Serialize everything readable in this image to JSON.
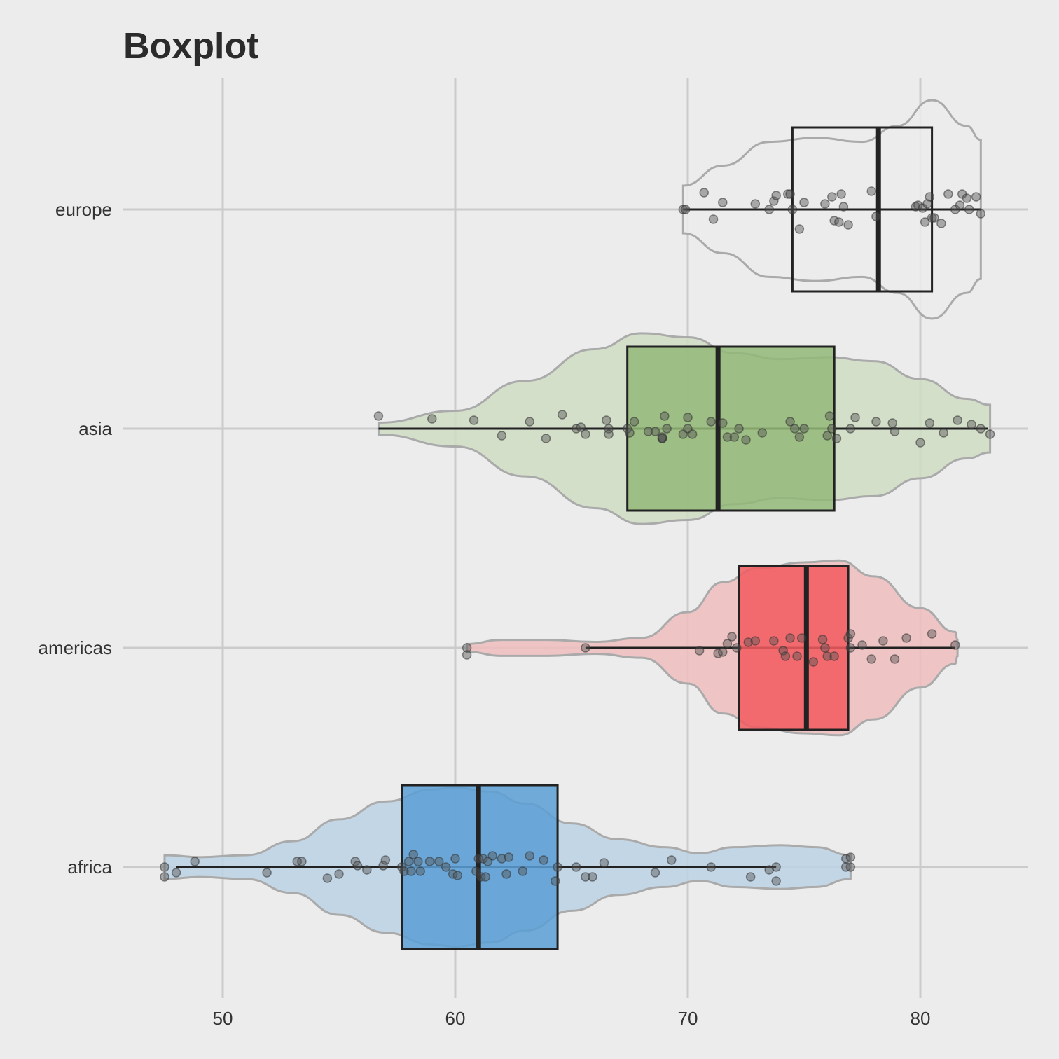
{
  "chart_data": {
    "type": "boxplot",
    "title": "Boxplot",
    "xlabel": "",
    "ylabel": "",
    "xlim": [
      45,
      85
    ],
    "x_ticks": [
      50,
      60,
      70,
      80
    ],
    "categories": [
      "europe",
      "asia",
      "americas",
      "africa"
    ],
    "grid": true,
    "series": [
      {
        "name": "europe",
        "box_color": "#ececec",
        "violin_color": "#ececec",
        "box": {
          "whisker_low": 69.8,
          "q1": 74.5,
          "median": 78.2,
          "q3": 80.5,
          "whisker_high": 82.6
        },
        "violin_range": [
          69.8,
          82.6
        ],
        "violin_profile": [
          [
            69.8,
            0.12
          ],
          [
            71.5,
            0.22
          ],
          [
            73.5,
            0.34
          ],
          [
            75.5,
            0.36
          ],
          [
            77.5,
            0.34
          ],
          [
            79.0,
            0.42
          ],
          [
            80.5,
            0.55
          ],
          [
            82.0,
            0.42
          ],
          [
            82.6,
            0.35
          ]
        ],
        "points": [
          69.8,
          69.9,
          70.7,
          71.1,
          71.5,
          72.9,
          73.5,
          73.7,
          73.8,
          74.3,
          74.4,
          74.5,
          74.8,
          75.0,
          75.9,
          76.2,
          76.3,
          76.5,
          76.6,
          76.7,
          76.9,
          77.9,
          78.1,
          79.8,
          79.9,
          80.1,
          80.2,
          80.3,
          80.4,
          80.5,
          80.6,
          80.9,
          81.2,
          81.5,
          81.7,
          81.8,
          82.0,
          82.1,
          82.4,
          82.6
        ],
        "points_jitter": [
          0.0,
          0.0,
          0.12,
          -0.07,
          0.05,
          0.04,
          0.0,
          0.06,
          0.1,
          0.11,
          0.11,
          0.0,
          -0.14,
          0.05,
          0.04,
          0.09,
          -0.08,
          -0.09,
          0.11,
          0.02,
          -0.11,
          0.13,
          -0.05,
          0.02,
          0.03,
          0.01,
          -0.09,
          0.04,
          0.09,
          -0.06,
          -0.06,
          -0.1,
          0.11,
          0.0,
          0.03,
          0.11,
          0.08,
          0.0,
          0.09,
          -0.03
        ]
      },
      {
        "name": "asia",
        "box_color": "#93b878",
        "violin_color": "#cfddc3",
        "box": {
          "whisker_low": 56.7,
          "q1": 67.4,
          "median": 71.3,
          "q3": 76.3,
          "whisker_high": 82.9
        },
        "violin_range": [
          56.7,
          83.0
        ],
        "violin_profile": [
          [
            56.7,
            0.03
          ],
          [
            60.0,
            0.09
          ],
          [
            63.0,
            0.24
          ],
          [
            66.0,
            0.4
          ],
          [
            68.0,
            0.48
          ],
          [
            70.0,
            0.46
          ],
          [
            72.0,
            0.38
          ],
          [
            74.0,
            0.35
          ],
          [
            76.0,
            0.36
          ],
          [
            78.0,
            0.34
          ],
          [
            80.0,
            0.25
          ],
          [
            82.0,
            0.15
          ],
          [
            83.0,
            0.12
          ]
        ],
        "points": [
          56.7,
          59.0,
          60.8,
          62.0,
          63.2,
          63.9,
          64.6,
          65.2,
          65.4,
          65.6,
          66.5,
          66.6,
          66.6,
          67.4,
          67.5,
          67.7,
          68.3,
          68.6,
          68.9,
          68.9,
          68.9,
          69.0,
          69.1,
          69.8,
          70.0,
          70.0,
          70.2,
          71.0,
          71.5,
          71.7,
          72.0,
          72.2,
          72.5,
          73.2,
          74.4,
          74.6,
          74.8,
          75.0,
          76.0,
          76.1,
          76.2,
          76.4,
          77.0,
          77.2,
          78.1,
          78.8,
          78.9,
          80.0,
          80.4,
          81.0,
          81.6,
          82.2,
          82.6,
          83.0
        ],
        "points_jitter": [
          0.09,
          0.07,
          0.06,
          -0.05,
          0.05,
          -0.07,
          0.1,
          0.0,
          0.01,
          -0.04,
          0.06,
          0.0,
          -0.04,
          0.0,
          -0.03,
          0.05,
          -0.02,
          -0.02,
          -0.07,
          -0.07,
          -0.06,
          0.09,
          0.0,
          -0.04,
          0.0,
          0.08,
          -0.04,
          0.05,
          0.04,
          -0.06,
          -0.06,
          0.0,
          -0.08,
          -0.03,
          0.05,
          0.0,
          -0.06,
          0.0,
          -0.05,
          0.09,
          0.0,
          -0.07,
          0.0,
          0.08,
          0.05,
          0.04,
          -0.02,
          -0.1,
          0.04,
          -0.03,
          0.06,
          0.03,
          0.0,
          -0.04
        ],
        "points_low": [
          56.7
        ]
      },
      {
        "name": "americas",
        "box_color": "#f25a5f",
        "violin_color": "#efbdbd",
        "box": {
          "whisker_low": 65.6,
          "q1": 72.2,
          "median": 75.1,
          "q3": 76.9,
          "whisker_high": 81.5
        },
        "violin_range": [
          60.5,
          81.6
        ],
        "violin_profile": [
          [
            60.5,
            0.02
          ],
          [
            62.0,
            0.04
          ],
          [
            64.0,
            0.04
          ],
          [
            66.0,
            0.03
          ],
          [
            68.0,
            0.05
          ],
          [
            70.0,
            0.18
          ],
          [
            71.5,
            0.33
          ],
          [
            73.0,
            0.4
          ],
          [
            75.0,
            0.43
          ],
          [
            76.5,
            0.44
          ],
          [
            78.0,
            0.36
          ],
          [
            80.0,
            0.2
          ],
          [
            81.5,
            0.08
          ],
          [
            81.6,
            0.04
          ]
        ],
        "points": [
          60.5,
          60.5,
          65.6,
          70.5,
          71.3,
          71.5,
          71.7,
          71.9,
          72.1,
          72.6,
          72.9,
          73.7,
          74.1,
          74.2,
          74.4,
          74.7,
          74.9,
          75.4,
          75.8,
          75.9,
          76.0,
          76.3,
          76.9,
          77.0,
          77.0,
          77.5,
          77.9,
          78.4,
          78.9,
          79.4,
          80.5,
          81.5
        ],
        "points_jitter": [
          0.0,
          -0.05,
          0.0,
          -0.02,
          -0.04,
          -0.03,
          0.03,
          0.08,
          0.0,
          0.04,
          0.05,
          0.05,
          -0.02,
          -0.06,
          0.07,
          -0.06,
          0.07,
          -0.1,
          0.06,
          0.0,
          -0.06,
          -0.06,
          0.07,
          0.0,
          0.1,
          0.02,
          -0.08,
          0.05,
          -0.08,
          0.07,
          0.1,
          0.02
        ]
      },
      {
        "name": "africa",
        "box_color": "#5b9fd5",
        "violin_color": "#bbd2e5",
        "box": {
          "whisker_low": 48.0,
          "q1": 57.7,
          "median": 61.0,
          "q3": 64.4,
          "whisker_high": 73.8
        },
        "violin_range": [
          47.5,
          77.0
        ],
        "violin_profile": [
          [
            47.5,
            0.06
          ],
          [
            49.0,
            0.05
          ],
          [
            51.0,
            0.06
          ],
          [
            53.0,
            0.13
          ],
          [
            55.0,
            0.24
          ],
          [
            57.0,
            0.33
          ],
          [
            59.0,
            0.39
          ],
          [
            60.0,
            0.4
          ],
          [
            61.5,
            0.38
          ],
          [
            63.0,
            0.32
          ],
          [
            65.0,
            0.22
          ],
          [
            67.0,
            0.14
          ],
          [
            69.0,
            0.1
          ],
          [
            70.5,
            0.07
          ],
          [
            72.0,
            0.1
          ],
          [
            74.0,
            0.11
          ],
          [
            75.5,
            0.1
          ],
          [
            77.0,
            0.06
          ]
        ],
        "points": [
          47.5,
          47.5,
          48.0,
          48.8,
          51.9,
          53.2,
          53.4,
          54.5,
          55.0,
          55.7,
          55.8,
          56.2,
          56.9,
          57.0,
          57.7,
          57.8,
          58.0,
          58.1,
          58.2,
          58.4,
          58.5,
          58.9,
          59.3,
          59.6,
          59.9,
          60.0,
          60.1,
          60.9,
          61.0,
          61.1,
          61.2,
          61.3,
          61.4,
          61.6,
          62.0,
          62.2,
          62.3,
          62.9,
          63.2,
          63.8,
          64.3,
          64.4,
          65.2,
          65.6,
          65.9,
          66.4,
          68.6,
          69.3,
          71.0,
          72.7,
          73.5,
          73.8,
          73.8,
          76.8,
          76.8,
          77.0,
          77.0
        ],
        "points_jitter": [
          0.0,
          -0.07,
          -0.04,
          0.04,
          -0.04,
          0.04,
          0.04,
          -0.08,
          -0.05,
          0.04,
          0.01,
          -0.02,
          0.01,
          0.05,
          0.0,
          -0.03,
          0.04,
          -0.03,
          0.09,
          0.04,
          -0.03,
          0.04,
          0.04,
          0.0,
          -0.05,
          0.06,
          -0.06,
          -0.03,
          0.06,
          -0.07,
          0.06,
          -0.07,
          0.04,
          0.08,
          0.06,
          -0.05,
          0.07,
          -0.03,
          0.08,
          0.05,
          -0.1,
          0.0,
          0.0,
          -0.07,
          -0.07,
          0.03,
          -0.04,
          0.05,
          0.0,
          -0.07,
          -0.02,
          0.0,
          -0.1,
          0.06,
          0.0,
          0.07,
          0.0
        ]
      }
    ]
  }
}
